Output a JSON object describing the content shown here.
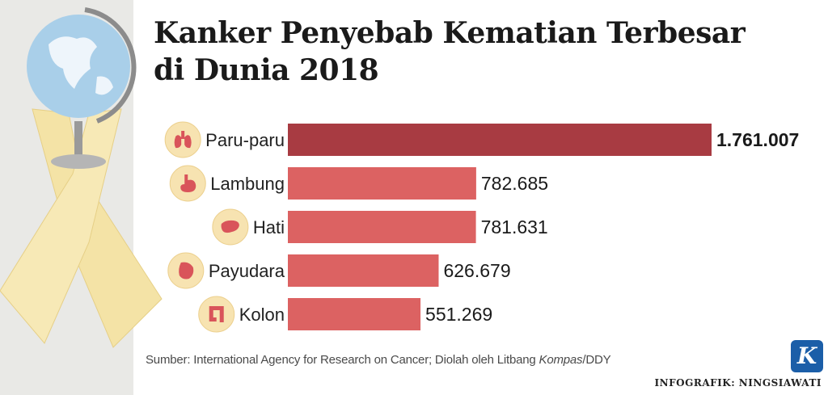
{
  "title_line1": "Kanker Penyebab Kematian Terbesar",
  "title_line2": "di Dunia 2018",
  "chart_data": {
    "type": "bar",
    "orientation": "horizontal",
    "categories": [
      "Paru-paru",
      "Lambung",
      "Hati",
      "Payudara",
      "Kolon"
    ],
    "values": [
      1761007,
      782685,
      781631,
      626679,
      551269
    ],
    "value_labels": [
      "1.761.007",
      "782.685",
      "781.631",
      "626.679",
      "551.269"
    ],
    "icons": [
      "lungs-icon",
      "stomach-icon",
      "liver-icon",
      "breast-icon",
      "colon-icon"
    ],
    "colors": {
      "highlight": "#a83b42",
      "bar": "#dc6262",
      "icon_fill": "#d9545a",
      "icon_bg": "#f7e3b1"
    }
  },
  "source": {
    "prefix": "Sumber: International Agency for Research on Cancer; Diolah oleh Litbang ",
    "italic": "Kompas",
    "suffix": "/DDY"
  },
  "credit": "INFOGRAFIK: NINGSIAWATI",
  "logo_letter": "K"
}
